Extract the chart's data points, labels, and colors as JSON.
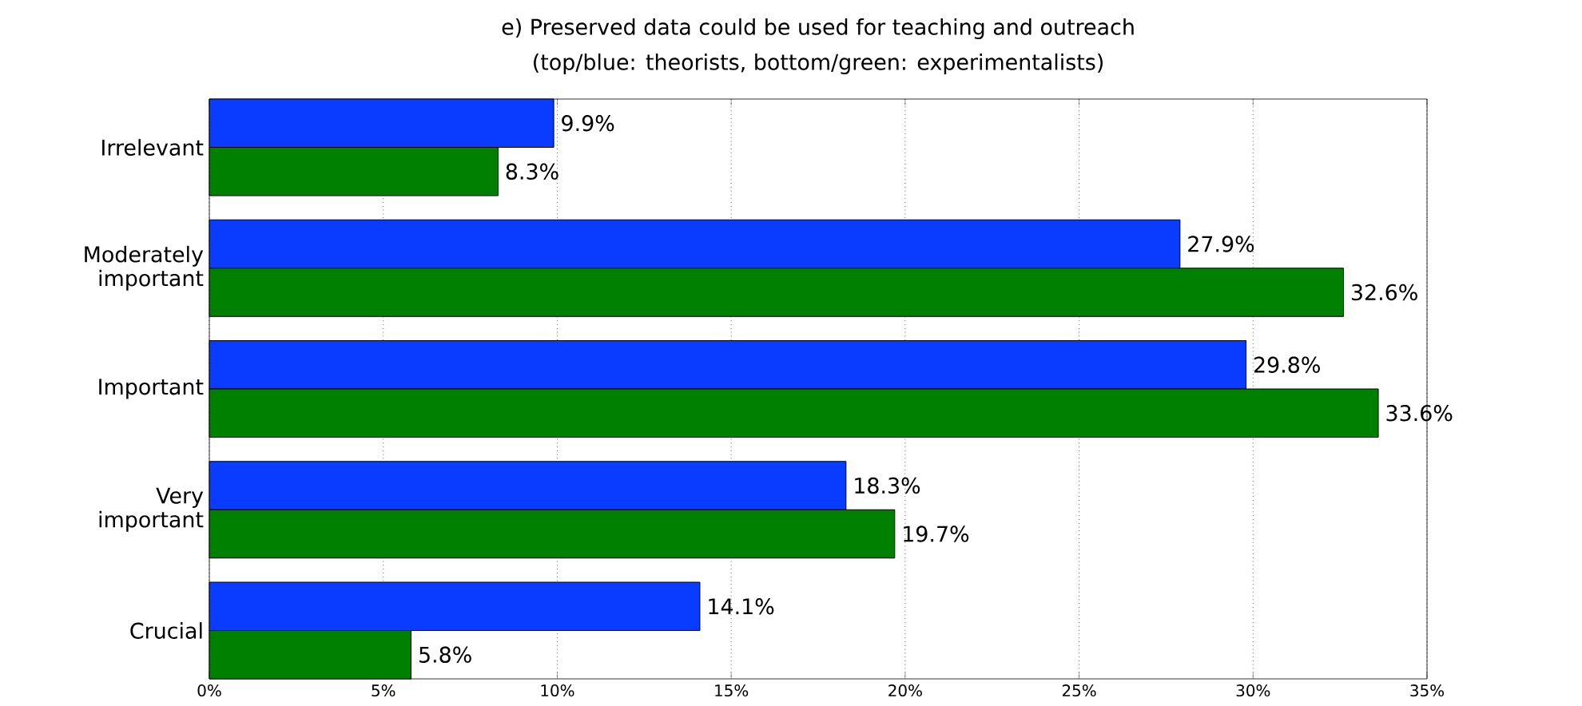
{
  "chart_data": {
    "type": "bar",
    "orientation": "horizontal",
    "title": "e) Preserved data could be used for teaching and outreach",
    "subtitle": "(top/blue: theorists, bottom/green: experimentalists)",
    "categories": [
      "Irrelevant",
      "Moderately important",
      "Important",
      "Very important",
      "Crucial"
    ],
    "series": [
      {
        "color": "#0a3cff",
        "values": [
          9.9,
          27.9,
          29.8,
          18.3,
          14.1
        ],
        "value_labels": [
          "9.9%",
          "27.9%",
          "29.8%",
          "18.3%",
          "14.1%"
        ]
      },
      {
        "color": "#008000",
        "values": [
          8.3,
          32.6,
          33.6,
          19.7,
          5.8
        ],
        "value_labels": [
          "8.3%",
          "32.6%",
          "33.6%",
          "19.7%",
          "5.8%"
        ]
      }
    ],
    "xlim": [
      0,
      35
    ],
    "xticks": [
      {
        "value": 0,
        "label": "0%"
      },
      {
        "value": 5,
        "label": "5%"
      },
      {
        "value": 10,
        "label": "10%"
      },
      {
        "value": 15,
        "label": "15%"
      },
      {
        "value": 20,
        "label": "20%"
      },
      {
        "value": 25,
        "label": "25%"
      },
      {
        "value": 30,
        "label": "30%"
      },
      {
        "value": 35,
        "label": "35%"
      }
    ],
    "grid": "x"
  }
}
